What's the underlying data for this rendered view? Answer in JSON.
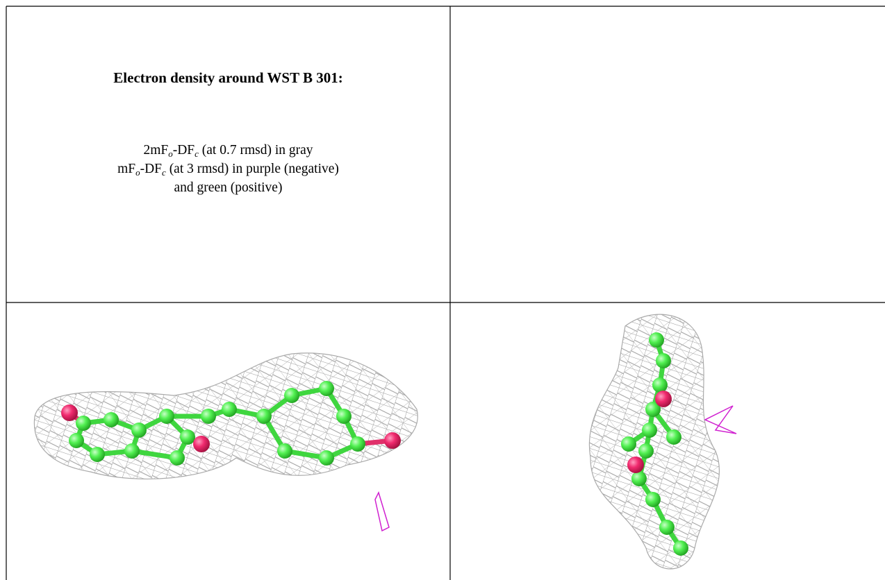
{
  "header": {
    "title": "Electron density around WST B 301:"
  },
  "legend": {
    "lines": [
      [
        "2mF",
        "o",
        "-DF",
        "c",
        " (at 0.7 rmsd) in gray"
      ],
      [
        "mF",
        "o",
        "-DF",
        "c",
        " (at 3 rmsd) in purple (negative)"
      ],
      [
        "and green (positive)"
      ]
    ]
  }
}
